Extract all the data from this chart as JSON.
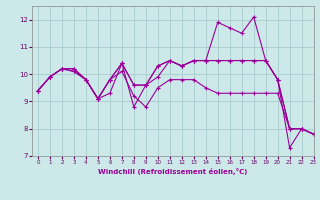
{
  "background_color": "#cce8e8",
  "grid_color": "#aacccc",
  "line_color": "#990099",
  "xlim": [
    -0.5,
    23
  ],
  "ylim": [
    7,
    12.5
  ],
  "yticks": [
    7,
    8,
    9,
    10,
    11,
    12
  ],
  "xticks": [
    0,
    1,
    2,
    3,
    4,
    5,
    6,
    7,
    8,
    9,
    10,
    11,
    12,
    13,
    14,
    15,
    16,
    17,
    18,
    19,
    20,
    21,
    22,
    23
  ],
  "xlabel": "Windchill (Refroidissement éolien,°C)",
  "series": [
    [
      9.4,
      9.9,
      10.2,
      10.2,
      9.8,
      9.1,
      9.3,
      10.4,
      9.6,
      9.6,
      10.3,
      10.5,
      10.3,
      10.5,
      10.5,
      11.9,
      11.7,
      11.5,
      12.1,
      10.5,
      9.8,
      7.3,
      8.0,
      7.8
    ],
    [
      9.4,
      9.9,
      10.2,
      10.2,
      9.8,
      9.1,
      9.8,
      10.4,
      9.6,
      9.6,
      10.3,
      10.5,
      10.3,
      10.5,
      10.5,
      10.5,
      10.5,
      10.5,
      10.5,
      10.5,
      9.8,
      8.0,
      8.0,
      7.8
    ],
    [
      9.4,
      9.9,
      10.2,
      10.1,
      9.8,
      9.1,
      9.8,
      10.4,
      8.8,
      9.6,
      9.9,
      10.5,
      10.3,
      10.5,
      10.5,
      10.5,
      10.5,
      10.5,
      10.5,
      10.5,
      9.8,
      8.0,
      8.0,
      7.8
    ],
    [
      9.4,
      9.9,
      10.2,
      10.1,
      9.8,
      9.1,
      9.8,
      10.1,
      9.2,
      8.8,
      9.5,
      9.8,
      9.8,
      9.8,
      9.5,
      9.3,
      9.3,
      9.3,
      9.3,
      9.3,
      9.3,
      8.0,
      8.0,
      7.8
    ]
  ]
}
